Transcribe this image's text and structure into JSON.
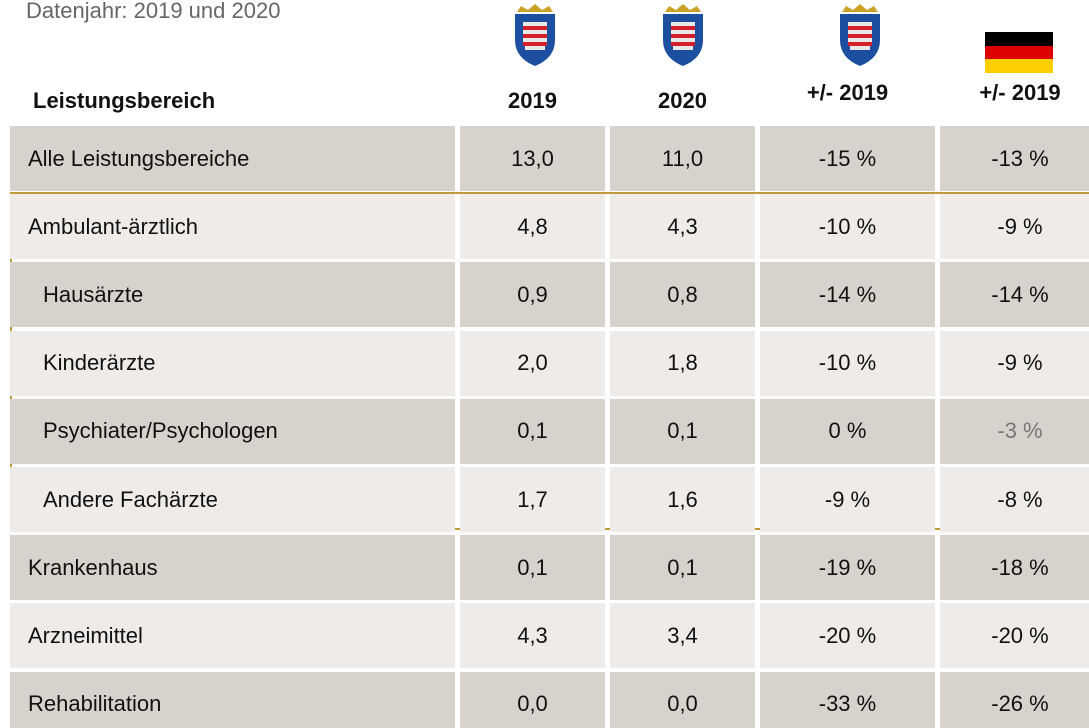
{
  "subtitle": "Datenjahr: 2019 und 2020",
  "table": {
    "header": [
      "Leistungsbereich",
      "2019",
      "2020",
      "+/- 2019",
      "+/- 2019"
    ],
    "rows": [
      [
        "Alle Leistungsbereiche",
        "13,0",
        "11,0",
        "-15 %",
        "-13 %"
      ],
      [
        "Ambulant-ärztlich",
        "4,8",
        "4,3",
        "-10 %",
        "-9 %"
      ],
      [
        "Hausärzte",
        "0,9",
        "0,8",
        "-14 %",
        "-14 %"
      ],
      [
        "Kinderärzte",
        "2,0",
        "1,8",
        "-10 %",
        "-9 %"
      ],
      [
        "Psychiater/Psychologen",
        "0,1",
        "0,1",
        "0 %",
        "-3 %"
      ],
      [
        "Andere Fachärzte",
        "1,7",
        "1,6",
        "-9 %",
        "-8 %"
      ],
      [
        "Krankenhaus",
        "0,1",
        "0,1",
        "-19 %",
        "-18 %"
      ],
      [
        "Arzneimittel",
        "4,3",
        "3,4",
        "-20 %",
        "-20 %"
      ],
      [
        "Rehabilitation",
        "0,0",
        "0,0",
        "-33 %",
        "-26 %"
      ]
    ]
  }
}
